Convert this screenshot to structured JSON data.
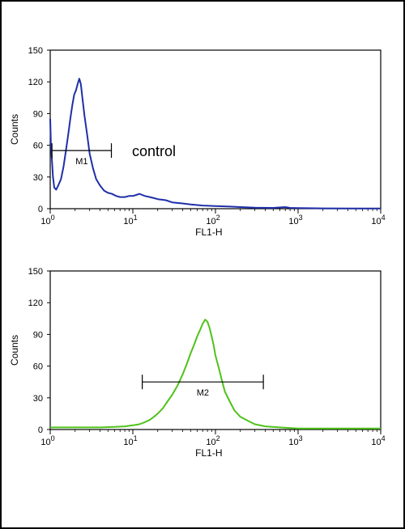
{
  "chart_data": [
    {
      "type": "line",
      "xlabel": "FL1-H",
      "ylabel": "Counts",
      "xscale": "log",
      "xlim": [
        1,
        10000
      ],
      "ylim": [
        0,
        150
      ],
      "xticks": [
        {
          "value": 1,
          "base": "10",
          "exp": "0"
        },
        {
          "value": 10,
          "base": "10",
          "exp": "1"
        },
        {
          "value": 100,
          "base": "10",
          "exp": "2"
        },
        {
          "value": 1000,
          "base": "10",
          "exp": "3"
        },
        {
          "value": 10000,
          "base": "10",
          "exp": "4"
        }
      ],
      "yticks": [
        "0",
        "30",
        "60",
        "90",
        "120",
        "150"
      ],
      "annotation": "control",
      "marker": {
        "label": "M1",
        "x": [
          1.05,
          5.5
        ],
        "y": 55
      },
      "series": [
        {
          "color": "#1f2fa8",
          "points": [
            [
              1.0,
              85
            ],
            [
              1.02,
              60
            ],
            [
              1.05,
              45
            ],
            [
              1.08,
              30
            ],
            [
              1.12,
              20
            ],
            [
              1.18,
              18
            ],
            [
              1.25,
              22
            ],
            [
              1.35,
              28
            ],
            [
              1.45,
              40
            ],
            [
              1.55,
              55
            ],
            [
              1.65,
              70
            ],
            [
              1.75,
              85
            ],
            [
              1.85,
              98
            ],
            [
              1.95,
              108
            ],
            [
              2.05,
              112
            ],
            [
              2.15,
              118
            ],
            [
              2.25,
              123
            ],
            [
              2.35,
              118
            ],
            [
              2.45,
              105
            ],
            [
              2.6,
              88
            ],
            [
              2.8,
              70
            ],
            [
              3.0,
              52
            ],
            [
              3.3,
              38
            ],
            [
              3.6,
              28
            ],
            [
              4.0,
              22
            ],
            [
              4.5,
              17
            ],
            [
              5.0,
              15
            ],
            [
              5.6,
              14
            ],
            [
              6.3,
              12
            ],
            [
              7.0,
              11
            ],
            [
              8.0,
              11
            ],
            [
              9.0,
              12
            ],
            [
              10.0,
              12
            ],
            [
              11.0,
              13
            ],
            [
              12.0,
              14
            ],
            [
              13.0,
              13
            ],
            [
              14.0,
              12
            ],
            [
              16.0,
              11
            ],
            [
              18.0,
              10
            ],
            [
              20.0,
              9
            ],
            [
              25.0,
              8
            ],
            [
              30.0,
              6
            ],
            [
              40.0,
              5
            ],
            [
              50.0,
              4
            ],
            [
              70.0,
              3
            ],
            [
              100.0,
              2.5
            ],
            [
              150.0,
              2
            ],
            [
              200.0,
              1.5
            ],
            [
              300.0,
              1
            ],
            [
              500.0,
              0.8
            ],
            [
              700.0,
              1.5
            ],
            [
              800.0,
              0.8
            ],
            [
              1000.0,
              0.5
            ],
            [
              2000.0,
              0.3
            ],
            [
              5000.0,
              0.2
            ],
            [
              10000.0,
              0.2
            ]
          ]
        }
      ]
    },
    {
      "type": "line",
      "xlabel": "FL1-H",
      "ylabel": "Counts",
      "xscale": "log",
      "xlim": [
        1,
        10000
      ],
      "ylim": [
        0,
        150
      ],
      "xticks": [
        {
          "value": 1,
          "base": "10",
          "exp": "0"
        },
        {
          "value": 10,
          "base": "10",
          "exp": "1"
        },
        {
          "value": 100,
          "base": "10",
          "exp": "2"
        },
        {
          "value": 1000,
          "base": "10",
          "exp": "3"
        },
        {
          "value": 10000,
          "base": "10",
          "exp": "4"
        }
      ],
      "yticks": [
        "0",
        "30",
        "60",
        "90",
        "120",
        "150"
      ],
      "annotation": "",
      "marker": {
        "label": "M2",
        "x": [
          13,
          380
        ],
        "y": 45
      },
      "series": [
        {
          "color": "#4fc21a",
          "points": [
            [
              1.0,
              2
            ],
            [
              2.0,
              2
            ],
            [
              4.0,
              2
            ],
            [
              6.0,
              2.5
            ],
            [
              8.0,
              3
            ],
            [
              10.0,
              4
            ],
            [
              12.0,
              5
            ],
            [
              14.0,
              7
            ],
            [
              16.0,
              9
            ],
            [
              18.0,
              12
            ],
            [
              20.0,
              15
            ],
            [
              23.0,
              20
            ],
            [
              26.0,
              26
            ],
            [
              30.0,
              33
            ],
            [
              35.0,
              42
            ],
            [
              40.0,
              52
            ],
            [
              45.0,
              62
            ],
            [
              50.0,
              72
            ],
            [
              55.0,
              80
            ],
            [
              60.0,
              88
            ],
            [
              65.0,
              94
            ],
            [
              70.0,
              100
            ],
            [
              75.0,
              104
            ],
            [
              80.0,
              102
            ],
            [
              85.0,
              96
            ],
            [
              90.0,
              88
            ],
            [
              95.0,
              80
            ],
            [
              100.0,
              70
            ],
            [
              110.0,
              58
            ],
            [
              120.0,
              46
            ],
            [
              130.0,
              36
            ],
            [
              150.0,
              26
            ],
            [
              170.0,
              18
            ],
            [
              200.0,
              12
            ],
            [
              250.0,
              8
            ],
            [
              300.0,
              5
            ],
            [
              400.0,
              3
            ],
            [
              600.0,
              2
            ],
            [
              1000.0,
              1
            ],
            [
              2000.0,
              1
            ],
            [
              5000.0,
              1
            ],
            [
              10000.0,
              1
            ]
          ]
        }
      ]
    }
  ]
}
